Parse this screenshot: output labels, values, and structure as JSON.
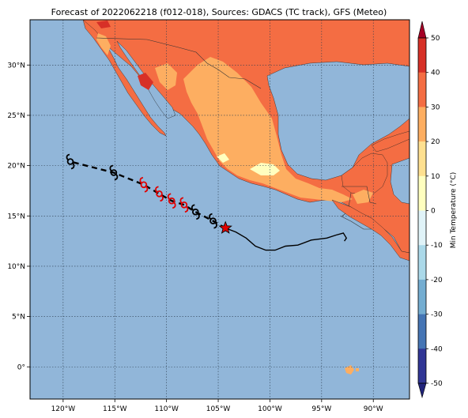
{
  "title": "Forecast of 2022062218 (f012-018), Sources: GDACS (TC track), GFS (Meteo)",
  "colors": {
    "ocean": "#91b6d9",
    "land_20_30": "#f46d43",
    "land_30_40": "#d73027",
    "land_10_20": "#fdae61",
    "land_0_10": "#fee090",
    "land_cold": "#ffffbf",
    "track": "#000000",
    "forecast_storm": "#e00000",
    "current_position": "#e00000"
  },
  "map": {
    "lon_range": [
      -123.2,
      -86.5
    ],
    "lat_range": [
      -3.2,
      34.5
    ],
    "lon_ticks": [
      {
        "value": -120,
        "label": "120°W"
      },
      {
        "value": -115,
        "label": "115°W"
      },
      {
        "value": -110,
        "label": "110°W"
      },
      {
        "value": -105,
        "label": "105°W"
      },
      {
        "value": -100,
        "label": "100°W"
      },
      {
        "value": -95,
        "label": "95°W"
      },
      {
        "value": -90,
        "label": "90°W"
      }
    ],
    "lat_ticks": [
      {
        "value": 30,
        "label": "30°N"
      },
      {
        "value": 25,
        "label": "25°N"
      },
      {
        "value": 20,
        "label": "20°N"
      },
      {
        "value": 15,
        "label": "15°N"
      },
      {
        "value": 10,
        "label": "10°N"
      },
      {
        "value": 5,
        "label": "5°N"
      },
      {
        "value": 0,
        "label": "0°"
      }
    ],
    "gridlines": "dotted"
  },
  "colorbar": {
    "label": "Min Temperature (°C)",
    "ticks": [
      "50",
      "40",
      "30",
      "20",
      "10",
      "0",
      "-10",
      "-20",
      "-30",
      "-40",
      "-50"
    ],
    "colors": [
      "#a50026",
      "#d73027",
      "#f46d43",
      "#fdae61",
      "#fee090",
      "#ffffbf",
      "#e0f3f8",
      "#abd9e9",
      "#74add1",
      "#4575b4",
      "#313695",
      "#21247a"
    ]
  },
  "track": {
    "past_path": [
      [
        -92.8,
        12.5
      ],
      [
        -92.6,
        12.8
      ],
      [
        -92.9,
        13.3
      ],
      [
        -93.6,
        13.1
      ],
      [
        -94.5,
        12.8
      ],
      [
        -96.0,
        12.6
      ],
      [
        -97.3,
        12.1
      ],
      [
        -98.5,
        12.0
      ],
      [
        -99.5,
        11.6
      ],
      [
        -100.4,
        11.6
      ],
      [
        -101.4,
        12.0
      ],
      [
        -102.3,
        12.8
      ],
      [
        -103.3,
        13.4
      ],
      [
        -104.3,
        13.8
      ]
    ],
    "current_position": {
      "lon": -104.3,
      "lat": 13.8
    },
    "forecast_path": [
      [
        -104.3,
        13.8
      ],
      [
        -105.5,
        14.5
      ],
      [
        -107.2,
        15.4
      ],
      [
        -108.3,
        16.1
      ],
      [
        -109.5,
        16.5
      ],
      [
        -110.7,
        17.2
      ],
      [
        -112.2,
        18.1
      ],
      [
        -115.1,
        19.3
      ],
      [
        -119.3,
        20.4
      ]
    ],
    "storm_symbols": [
      {
        "lon": -105.5,
        "lat": 14.5,
        "kind": "past"
      },
      {
        "lon": -107.2,
        "lat": 15.4,
        "kind": "past"
      },
      {
        "lon": -108.3,
        "lat": 16.1,
        "kind": "forecast"
      },
      {
        "lon": -109.5,
        "lat": 16.5,
        "kind": "forecast"
      },
      {
        "lon": -110.7,
        "lat": 17.2,
        "kind": "forecast"
      },
      {
        "lon": -112.2,
        "lat": 18.1,
        "kind": "forecast"
      },
      {
        "lon": -115.1,
        "lat": 19.3,
        "kind": "past"
      },
      {
        "lon": -119.3,
        "lat": 20.4,
        "kind": "past"
      }
    ]
  }
}
